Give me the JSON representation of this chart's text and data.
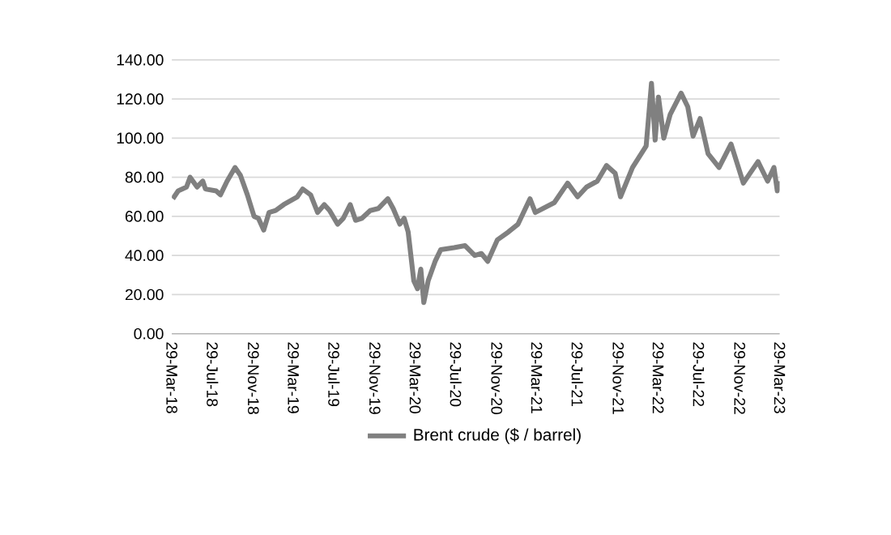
{
  "chart_data": {
    "type": "line",
    "x": [
      "2018-04-01",
      "2018-04-17",
      "2018-05-12",
      "2018-05-23",
      "2018-06-13",
      "2018-06-30",
      "2018-07-08",
      "2018-08-09",
      "2018-08-22",
      "2018-09-11",
      "2018-10-05",
      "2018-10-21",
      "2018-11-11",
      "2018-12-01",
      "2018-12-14",
      "2018-12-30",
      "2019-01-15",
      "2019-02-04",
      "2019-02-28",
      "2019-04-10",
      "2019-04-26",
      "2019-05-20",
      "2019-06-10",
      "2019-06-30",
      "2019-07-16",
      "2019-08-09",
      "2019-08-26",
      "2019-09-16",
      "2019-10-02",
      "2019-10-21",
      "2019-11-15",
      "2019-12-09",
      "2020-01-07",
      "2020-01-23",
      "2020-02-12",
      "2020-02-25",
      "2020-03-08",
      "2020-03-25",
      "2020-04-05",
      "2020-04-15",
      "2020-04-24",
      "2020-05-07",
      "2020-05-28",
      "2020-06-14",
      "2020-07-24",
      "2020-08-26",
      "2020-09-24",
      "2020-10-14",
      "2020-11-02",
      "2020-12-01",
      "2021-01-03",
      "2021-02-01",
      "2021-03-09",
      "2021-03-25",
      "2021-05-21",
      "2021-06-30",
      "2021-07-30",
      "2021-08-26",
      "2021-09-27",
      "2021-10-25",
      "2021-11-20",
      "2021-12-06",
      "2022-01-11",
      "2022-02-21",
      "2022-03-09",
      "2022-03-20",
      "2022-03-30",
      "2022-04-15",
      "2022-05-04",
      "2022-06-06",
      "2022-06-26",
      "2022-07-12",
      "2022-08-02",
      "2022-08-26",
      "2022-09-28",
      "2022-11-03",
      "2022-12-10",
      "2023-01-23",
      "2023-02-21",
      "2023-03-12",
      "2023-03-22",
      "2023-03-29"
    ],
    "series": [
      {
        "name": "Brent crude ($ / barrel)",
        "color": "#808080",
        "values": [
          69,
          73,
          75,
          80,
          75,
          78,
          74,
          73,
          71,
          78,
          85,
          81,
          71,
          60,
          59,
          53,
          62,
          63,
          66,
          70,
          74,
          71,
          62,
          66,
          63,
          56,
          59,
          66,
          58,
          59,
          63,
          64,
          69,
          64,
          56,
          59,
          52,
          27,
          23,
          33,
          16,
          27,
          37,
          43,
          44,
          45,
          40,
          41,
          37,
          48,
          52,
          56,
          69,
          62,
          67,
          77,
          70,
          75,
          78,
          86,
          82,
          70,
          85,
          96,
          128,
          99,
          121,
          100,
          112,
          123,
          116,
          101,
          110,
          92,
          85,
          97,
          77,
          88,
          78,
          85,
          73,
          78
        ]
      }
    ],
    "xlim": [
      "2018-03-29",
      "2023-03-29"
    ],
    "xticks": [
      {
        "value": "2018-03-29",
        "label": "29-Mar-18"
      },
      {
        "value": "2018-07-29",
        "label": "29-Jul-18"
      },
      {
        "value": "2018-11-29",
        "label": "29-Nov-18"
      },
      {
        "value": "2019-03-29",
        "label": "29-Mar-19"
      },
      {
        "value": "2019-07-29",
        "label": "29-Jul-19"
      },
      {
        "value": "2019-11-29",
        "label": "29-Nov-19"
      },
      {
        "value": "2020-03-29",
        "label": "29-Mar-20"
      },
      {
        "value": "2020-07-29",
        "label": "29-Jul-20"
      },
      {
        "value": "2020-11-29",
        "label": "29-Nov-20"
      },
      {
        "value": "2021-03-29",
        "label": "29-Mar-21"
      },
      {
        "value": "2021-07-29",
        "label": "29-Jul-21"
      },
      {
        "value": "2021-11-29",
        "label": "29-Nov-21"
      },
      {
        "value": "2022-03-29",
        "label": "29-Mar-22"
      },
      {
        "value": "2022-07-29",
        "label": "29-Jul-22"
      },
      {
        "value": "2022-11-29",
        "label": "29-Nov-22"
      },
      {
        "value": "2023-03-29",
        "label": "29-Mar-23"
      }
    ],
    "ylim": [
      0,
      140
    ],
    "yticks": [
      {
        "value": 0,
        "label": "0.00"
      },
      {
        "value": 20,
        "label": "20.00"
      },
      {
        "value": 40,
        "label": "40.00"
      },
      {
        "value": 60,
        "label": "60.00"
      },
      {
        "value": 80,
        "label": "80.00"
      },
      {
        "value": 100,
        "label": "100.00"
      },
      {
        "value": 120,
        "label": "120.00"
      },
      {
        "value": 140,
        "label": "140.00"
      }
    ],
    "grid": "y",
    "legend": "bottom",
    "marker": "none",
    "line_style": "solid"
  }
}
